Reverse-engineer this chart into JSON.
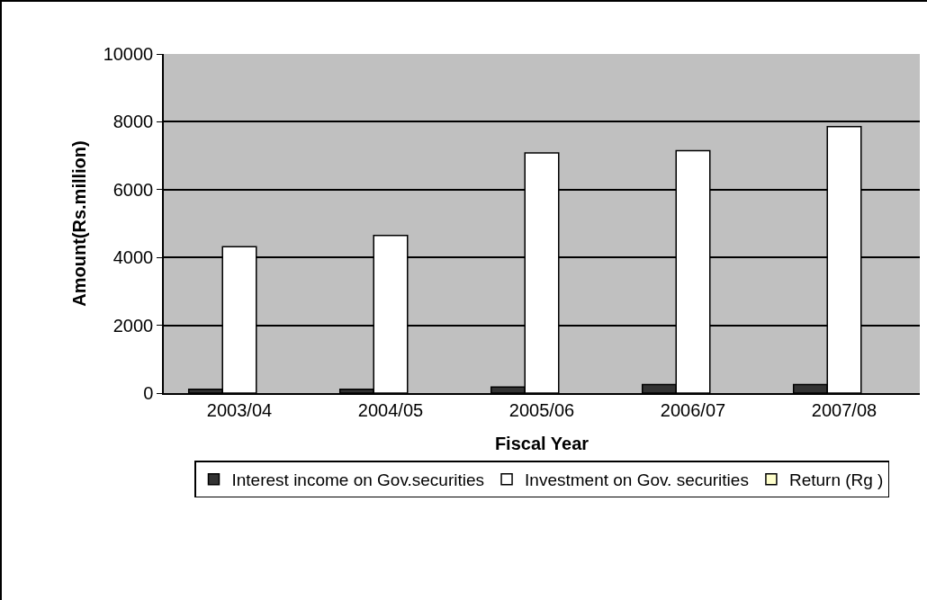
{
  "chart_data": {
    "type": "bar",
    "xlabel": "Fiscal Year",
    "ylabel": "Amount(Rs.million)",
    "categories": [
      "2003/04",
      "2004/05",
      "2005/06",
      "2006/07",
      "2007/08"
    ],
    "series": [
      {
        "name": "Interest income on Gov.securities",
        "color": "#333333",
        "values": [
          110,
          110,
          180,
          250,
          250
        ]
      },
      {
        "name": "Investment on Gov. securities",
        "color": "#ffffff",
        "values": [
          4320,
          4650,
          7080,
          7150,
          7860
        ]
      },
      {
        "name": "Return (Rg )",
        "color": "#ffffcc",
        "values": [
          null,
          null,
          null,
          null,
          null
        ]
      }
    ],
    "ylim": [
      0,
      10000
    ],
    "yticks": [
      0,
      2000,
      4000,
      6000,
      8000,
      10000
    ],
    "grid": "y",
    "legend": "bottom"
  }
}
